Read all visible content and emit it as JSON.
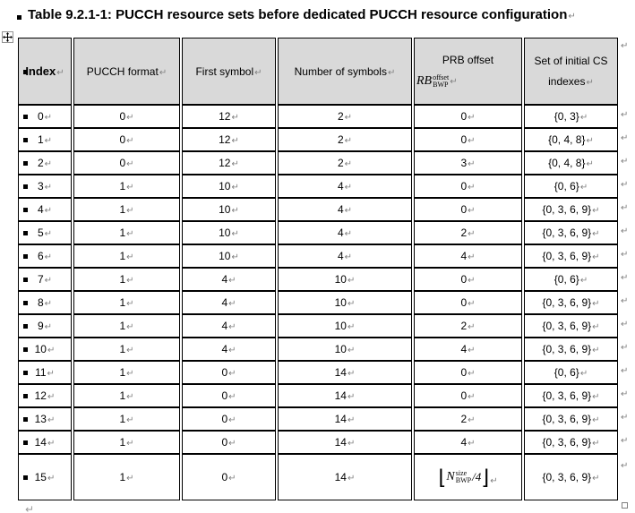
{
  "colors": {
    "header_bg": "#d9d9d9",
    "border": "#000000",
    "mark_gray": "#808080",
    "text": "#000000"
  },
  "marks": {
    "end_of_cell": "↵",
    "end_of_row": "↵",
    "row_bullet": "▪",
    "below_table_mark": "↵"
  },
  "title": {
    "text": "Table 9.2.1-1: PUCCH resource sets before dedicated PUCCH resource configuration"
  },
  "table": {
    "header": {
      "index": "Index",
      "pucch_format": "PUCCH format",
      "first_symbol": "First symbol",
      "number_of_symbols": "Number of symbols",
      "prb_offset": {
        "line1": "PRB offset",
        "math_base": "RB",
        "math_sup": "offset",
        "math_sub": "BWP"
      },
      "cs_indexes": {
        "line1": "Set of initial CS",
        "line2": "indexes"
      }
    },
    "rows": [
      {
        "index": "0",
        "format": "0",
        "first_symbol": "12",
        "num_symbols": "2",
        "prb_offset": "0",
        "cs_set": "{0, 3}"
      },
      {
        "index": "1",
        "format": "0",
        "first_symbol": "12",
        "num_symbols": "2",
        "prb_offset": "0",
        "cs_set": "{0, 4, 8}"
      },
      {
        "index": "2",
        "format": "0",
        "first_symbol": "12",
        "num_symbols": "2",
        "prb_offset": "3",
        "cs_set": "{0, 4, 8}"
      },
      {
        "index": "3",
        "format": "1",
        "first_symbol": "10",
        "num_symbols": "4",
        "prb_offset": "0",
        "cs_set": "{0, 6}"
      },
      {
        "index": "4",
        "format": "1",
        "first_symbol": "10",
        "num_symbols": "4",
        "prb_offset": "0",
        "cs_set": "{0, 3, 6, 9}"
      },
      {
        "index": "5",
        "format": "1",
        "first_symbol": "10",
        "num_symbols": "4",
        "prb_offset": "2",
        "cs_set": "{0, 3, 6, 9}"
      },
      {
        "index": "6",
        "format": "1",
        "first_symbol": "10",
        "num_symbols": "4",
        "prb_offset": "4",
        "cs_set": "{0, 3, 6, 9}"
      },
      {
        "index": "7",
        "format": "1",
        "first_symbol": "4",
        "num_symbols": "10",
        "prb_offset": "0",
        "cs_set": "{0, 6}"
      },
      {
        "index": "8",
        "format": "1",
        "first_symbol": "4",
        "num_symbols": "10",
        "prb_offset": "0",
        "cs_set": "{0, 3, 6, 9}"
      },
      {
        "index": "9",
        "format": "1",
        "first_symbol": "4",
        "num_symbols": "10",
        "prb_offset": "2",
        "cs_set": "{0, 3, 6, 9}"
      },
      {
        "index": "10",
        "format": "1",
        "first_symbol": "4",
        "num_symbols": "10",
        "prb_offset": "4",
        "cs_set": "{0, 3, 6, 9}"
      },
      {
        "index": "11",
        "format": "1",
        "first_symbol": "0",
        "num_symbols": "14",
        "prb_offset": "0",
        "cs_set": "{0, 6}"
      },
      {
        "index": "12",
        "format": "1",
        "first_symbol": "0",
        "num_symbols": "14",
        "prb_offset": "0",
        "cs_set": "{0, 3, 6, 9}"
      },
      {
        "index": "13",
        "format": "1",
        "first_symbol": "0",
        "num_symbols": "14",
        "prb_offset": "2",
        "cs_set": "{0, 3, 6, 9}"
      },
      {
        "index": "14",
        "format": "1",
        "first_symbol": "0",
        "num_symbols": "14",
        "prb_offset": "4",
        "cs_set": "{0, 3, 6, 9}"
      },
      {
        "index": "15",
        "format": "1",
        "first_symbol": "0",
        "num_symbols": "14",
        "prb_offset": {
          "formula": {
            "floor_open": "⌊",
            "base": "N",
            "sup": "size",
            "sub": "BWP",
            "divisor": "/4",
            "floor_close": "⌋"
          }
        },
        "cs_set": "{0, 3, 6, 9}"
      }
    ]
  }
}
